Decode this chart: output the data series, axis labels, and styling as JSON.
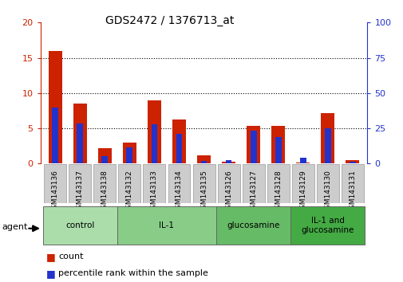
{
  "title": "GDS2472 / 1376713_at",
  "samples": [
    "GSM143136",
    "GSM143137",
    "GSM143138",
    "GSM143132",
    "GSM143133",
    "GSM143134",
    "GSM143135",
    "GSM143126",
    "GSM143127",
    "GSM143128",
    "GSM143129",
    "GSM143130",
    "GSM143131"
  ],
  "count_values": [
    16.0,
    8.5,
    2.2,
    3.0,
    9.0,
    6.2,
    1.2,
    0.3,
    5.3,
    5.3,
    0.2,
    7.2,
    0.5
  ],
  "percentile_values": [
    8.0,
    5.7,
    1.1,
    2.3,
    5.6,
    4.2,
    0.4,
    0.5,
    4.7,
    3.8,
    0.8,
    5.0,
    0.3
  ],
  "count_color": "#cc2200",
  "percentile_color": "#2233cc",
  "ylim_left": [
    0,
    20
  ],
  "ylim_right": [
    0,
    100
  ],
  "yticks_left": [
    0,
    5,
    10,
    15,
    20
  ],
  "yticks_right": [
    0,
    25,
    50,
    75,
    100
  ],
  "groups": [
    {
      "label": "control",
      "indices": [
        0,
        1,
        2
      ],
      "color": "#aaddaa"
    },
    {
      "label": "IL-1",
      "indices": [
        3,
        4,
        5,
        6
      ],
      "color": "#88cc88"
    },
    {
      "label": "glucosamine",
      "indices": [
        7,
        8,
        9
      ],
      "color": "#66bb66"
    },
    {
      "label": "IL-1 and\nglucosamine",
      "indices": [
        10,
        11,
        12
      ],
      "color": "#44aa44"
    }
  ],
  "agent_label": "agent",
  "legend_items": [
    {
      "label": "count",
      "color": "#cc2200"
    },
    {
      "label": "percentile rank within the sample",
      "color": "#2233cc"
    }
  ],
  "background_color": "#ffffff",
  "tick_bg": "#cccccc",
  "red_bar_width": 0.55,
  "blue_bar_width": 0.25
}
